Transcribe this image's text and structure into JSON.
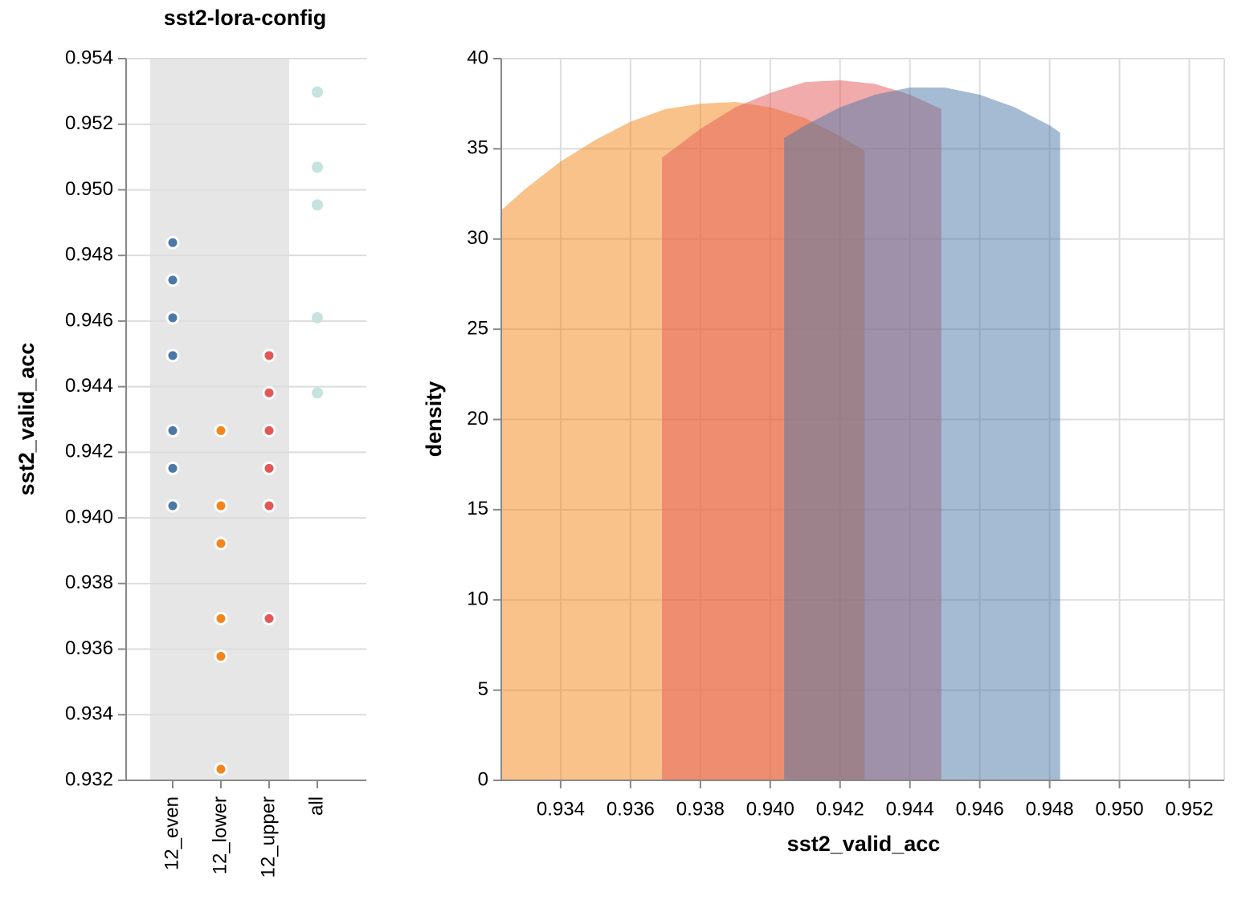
{
  "chart_data": [
    {
      "type": "strip",
      "title": "sst2-lora-config",
      "y_label": "sst2_valid_acc",
      "categories": [
        "12_even",
        "12_lower",
        "12_upper",
        "all"
      ],
      "colors": [
        "#4c78a8",
        "#f58518",
        "#e45756",
        "#c5e3df"
      ],
      "values": [
        [
          0.94839,
          0.94725,
          0.9461,
          0.94495,
          0.94266,
          0.94151,
          0.94037
        ],
        [
          0.94266,
          0.94037,
          0.93922,
          0.93693,
          0.93578,
          0.93234
        ],
        [
          0.94495,
          0.94381,
          0.94266,
          0.94151,
          0.94037,
          0.93693
        ],
        [
          0.95298,
          0.95069,
          0.94954,
          0.9461,
          0.94381
        ]
      ],
      "ylim": [
        0.932,
        0.954
      ],
      "yticks": [
        0.932,
        0.934,
        0.936,
        0.938,
        {
          "value": 0.94,
          "label": "0.940"
        },
        0.942,
        0.944,
        0.946,
        0.948,
        {
          "value": 0.95,
          "label": "0.950"
        },
        0.952,
        0.954
      ],
      "grid": true
    },
    {
      "type": "area",
      "x_label": "sst2_valid_acc",
      "y_label": "density",
      "series": [
        {
          "color": "#f58518",
          "x": [
            0.9323,
            0.933,
            0.934,
            0.935,
            0.936,
            0.937,
            0.938,
            0.939,
            0.94,
            0.941,
            0.942,
            0.9427
          ],
          "values": [
            31.6,
            32.8,
            34.3,
            35.5,
            36.5,
            37.2,
            37.5,
            37.6,
            37.3,
            36.7,
            35.7,
            34.9
          ]
        },
        {
          "color": "#e45756",
          "x": [
            0.9369,
            0.938,
            0.939,
            0.94,
            0.941,
            0.942,
            0.943,
            0.944,
            0.9449
          ],
          "values": [
            34.5,
            36.1,
            37.3,
            38.1,
            38.7,
            38.8,
            38.6,
            38.0,
            37.2
          ]
        },
        {
          "color": "#4c78a8",
          "x": [
            0.9404,
            0.941,
            0.942,
            0.943,
            0.944,
            0.945,
            0.946,
            0.947,
            0.948,
            0.9483
          ],
          "values": [
            35.6,
            36.3,
            37.3,
            38.0,
            38.4,
            38.4,
            38.0,
            37.3,
            36.3,
            35.9
          ]
        }
      ],
      "xlim": [
        0.9323,
        0.953
      ],
      "ylim": [
        0,
        40
      ],
      "xticks": [
        0.934,
        0.936,
        0.938,
        {
          "value": 0.94,
          "label": "0.940"
        },
        0.942,
        0.944,
        0.946,
        0.948,
        {
          "value": 0.95,
          "label": "0.950"
        },
        0.952
      ],
      "yticks": [
        0,
        5,
        10,
        15,
        20,
        25,
        30,
        35,
        40
      ],
      "grid": true,
      "opacity": 0.5
    }
  ]
}
